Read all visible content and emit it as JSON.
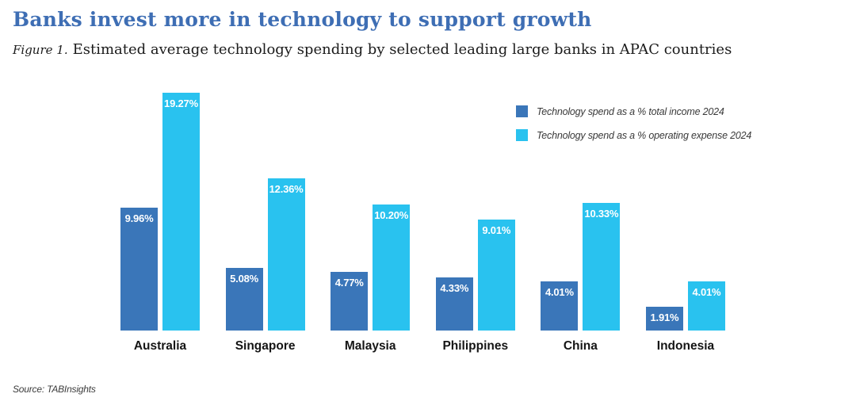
{
  "header": {
    "title": "Banks invest more in technology to support growth",
    "figure_label": "Figure 1.",
    "subtitle": "Estimated average technology spending by selected leading large banks in APAC countries"
  },
  "colors": {
    "title_blue": "#3E6EB4",
    "series_income_blue": "#3A76B9",
    "series_expense_cyan": "#29C2EF"
  },
  "legend": {
    "items": [
      {
        "label": "Technology spend as a % total income 2024",
        "color": "#3A76B9"
      },
      {
        "label": "Technology spend as a % operating expense 2024",
        "color": "#29C2EF"
      }
    ]
  },
  "chart_data": {
    "type": "bar",
    "title": "Estimated average technology spending by selected leading large banks in APAC countries",
    "categories": [
      "Australia",
      "Singapore",
      "Malaysia",
      "Philippines",
      "China",
      "Indonesia"
    ],
    "series": [
      {
        "name": "Technology spend as a % total income 2024",
        "color": "#3A76B9",
        "values": [
          9.96,
          5.08,
          4.77,
          4.33,
          4.01,
          1.91
        ],
        "value_labels": [
          "9.96%",
          "5.08%",
          "4.77%",
          "4.33%",
          "4.01%",
          "1.91%"
        ]
      },
      {
        "name": "Technology spend as a % operating expense 2024",
        "color": "#29C2EF",
        "values": [
          19.27,
          12.36,
          10.2,
          9.01,
          10.33,
          4.01
        ],
        "value_labels": [
          "19.27%",
          "12.36%",
          "10.20%",
          "9.01%",
          "10.33%",
          "4.01%"
        ]
      }
    ],
    "xlabel": "",
    "ylabel": "",
    "ylim": [
      0,
      19.27
    ],
    "grid": false,
    "axes_visible": false,
    "value_label_position": "inside-top",
    "legend_position": "top-right"
  },
  "footer": {
    "source": "Source: TABInsights"
  }
}
